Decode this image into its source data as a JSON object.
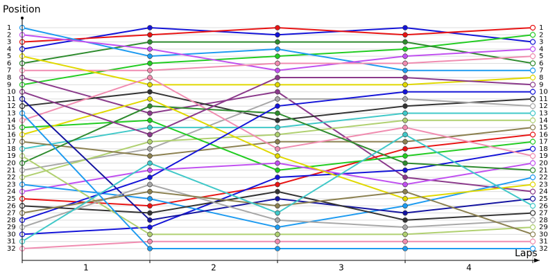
{
  "chart_data": {
    "type": "line",
    "y_label": "Position",
    "x_label": "Laps",
    "x": [
      0,
      1,
      2,
      3,
      4
    ],
    "xlim": [
      0,
      4
    ],
    "xticks": [
      {
        "value": 0.5,
        "label": "1"
      },
      {
        "value": 1.5,
        "label": "2"
      },
      {
        "value": 2.5,
        "label": "3"
      },
      {
        "value": 3.5,
        "label": "4"
      }
    ],
    "ylim": [
      1,
      32
    ],
    "y_inverted": true,
    "yticks": [
      1,
      2,
      3,
      4,
      5,
      6,
      7,
      8,
      9,
      10,
      11,
      12,
      13,
      14,
      15,
      16,
      17,
      18,
      19,
      20,
      21,
      22,
      23,
      24,
      25,
      26,
      27,
      28,
      29,
      30,
      31,
      32
    ],
    "grid": true,
    "series": [
      {
        "color": "#1414d8",
        "values": [
          4,
          1,
          2,
          1,
          3
        ]
      },
      {
        "color": "#e81414",
        "values": [
          3,
          2,
          1,
          2,
          1
        ]
      },
      {
        "color": "#22cc22",
        "values": [
          9,
          6,
          5,
          4,
          2
        ]
      },
      {
        "color": "#2e8b2e",
        "values": [
          6,
          3,
          3,
          3,
          6
        ]
      },
      {
        "color": "#1e9bf0",
        "values": [
          1,
          5,
          4,
          7,
          7
        ]
      },
      {
        "color": "#c050f0",
        "values": [
          2,
          4,
          7,
          5,
          4
        ]
      },
      {
        "color": "#f08cb0",
        "values": [
          7,
          7,
          6,
          6,
          5
        ]
      },
      {
        "color": "#e0d800",
        "values": [
          5,
          9,
          9,
          9,
          8
        ]
      },
      {
        "color": "#8b3a8b",
        "values": [
          8,
          13,
          10,
          22,
          24
        ]
      },
      {
        "color": "#333333",
        "values": [
          12,
          10,
          14,
          12,
          11
        ]
      },
      {
        "color": "#a8a8a8",
        "values": [
          21,
          18,
          11,
          11,
          12
        ]
      },
      {
        "color": "#40c8c8",
        "values": [
          18,
          15,
          15,
          13,
          13
        ]
      },
      {
        "color": "#b0d070",
        "values": [
          22,
          17,
          16,
          14,
          14
        ]
      },
      {
        "color": "#8b8050",
        "values": [
          17,
          19,
          17,
          17,
          15
        ]
      },
      {
        "color": "#e81414",
        "values": [
          25,
          26,
          23,
          18,
          16
        ]
      },
      {
        "color": "#22cc22",
        "values": [
          15,
          14,
          21,
          19,
          17
        ]
      },
      {
        "color": "#1414d8",
        "values": [
          30,
          29,
          22,
          21,
          18
        ]
      },
      {
        "color": "#f08cb0",
        "values": [
          14,
          8,
          18,
          15,
          19
        ]
      },
      {
        "color": "#c050f0",
        "values": [
          24,
          21,
          20,
          23,
          20
        ]
      },
      {
        "color": "#2e8b2e",
        "values": [
          20,
          12,
          13,
          20,
          21
        ]
      },
      {
        "color": "#1e9bf0",
        "values": [
          23,
          25,
          29,
          26,
          22
        ]
      },
      {
        "color": "#e0d800",
        "values": [
          16,
          11,
          19,
          25,
          23
        ]
      },
      {
        "color": "#1414a0",
        "values": [
          11,
          28,
          25,
          27,
          25
        ]
      },
      {
        "color": "#8b3a8b",
        "values": [
          10,
          16,
          8,
          8,
          9
        ]
      },
      {
        "color": "#1414d8",
        "values": [
          28,
          22,
          12,
          10,
          10
        ]
      },
      {
        "color": "#333333",
        "values": [
          26,
          27,
          24,
          28,
          27
        ]
      },
      {
        "color": "#b0d070",
        "values": [
          19,
          30,
          30,
          30,
          29
        ]
      },
      {
        "color": "#a8a8a8",
        "values": [
          29,
          23,
          28,
          29,
          28
        ]
      },
      {
        "color": "#8b8050",
        "values": [
          27,
          24,
          26,
          24,
          30
        ]
      },
      {
        "color": "#40c8c8",
        "values": [
          31,
          20,
          27,
          16,
          26
        ]
      },
      {
        "color": "#f08cb0",
        "values": [
          32,
          31,
          31,
          31,
          31
        ]
      },
      {
        "color": "#1e9bf0",
        "values": [
          13,
          32,
          32,
          32,
          32
        ]
      }
    ]
  }
}
